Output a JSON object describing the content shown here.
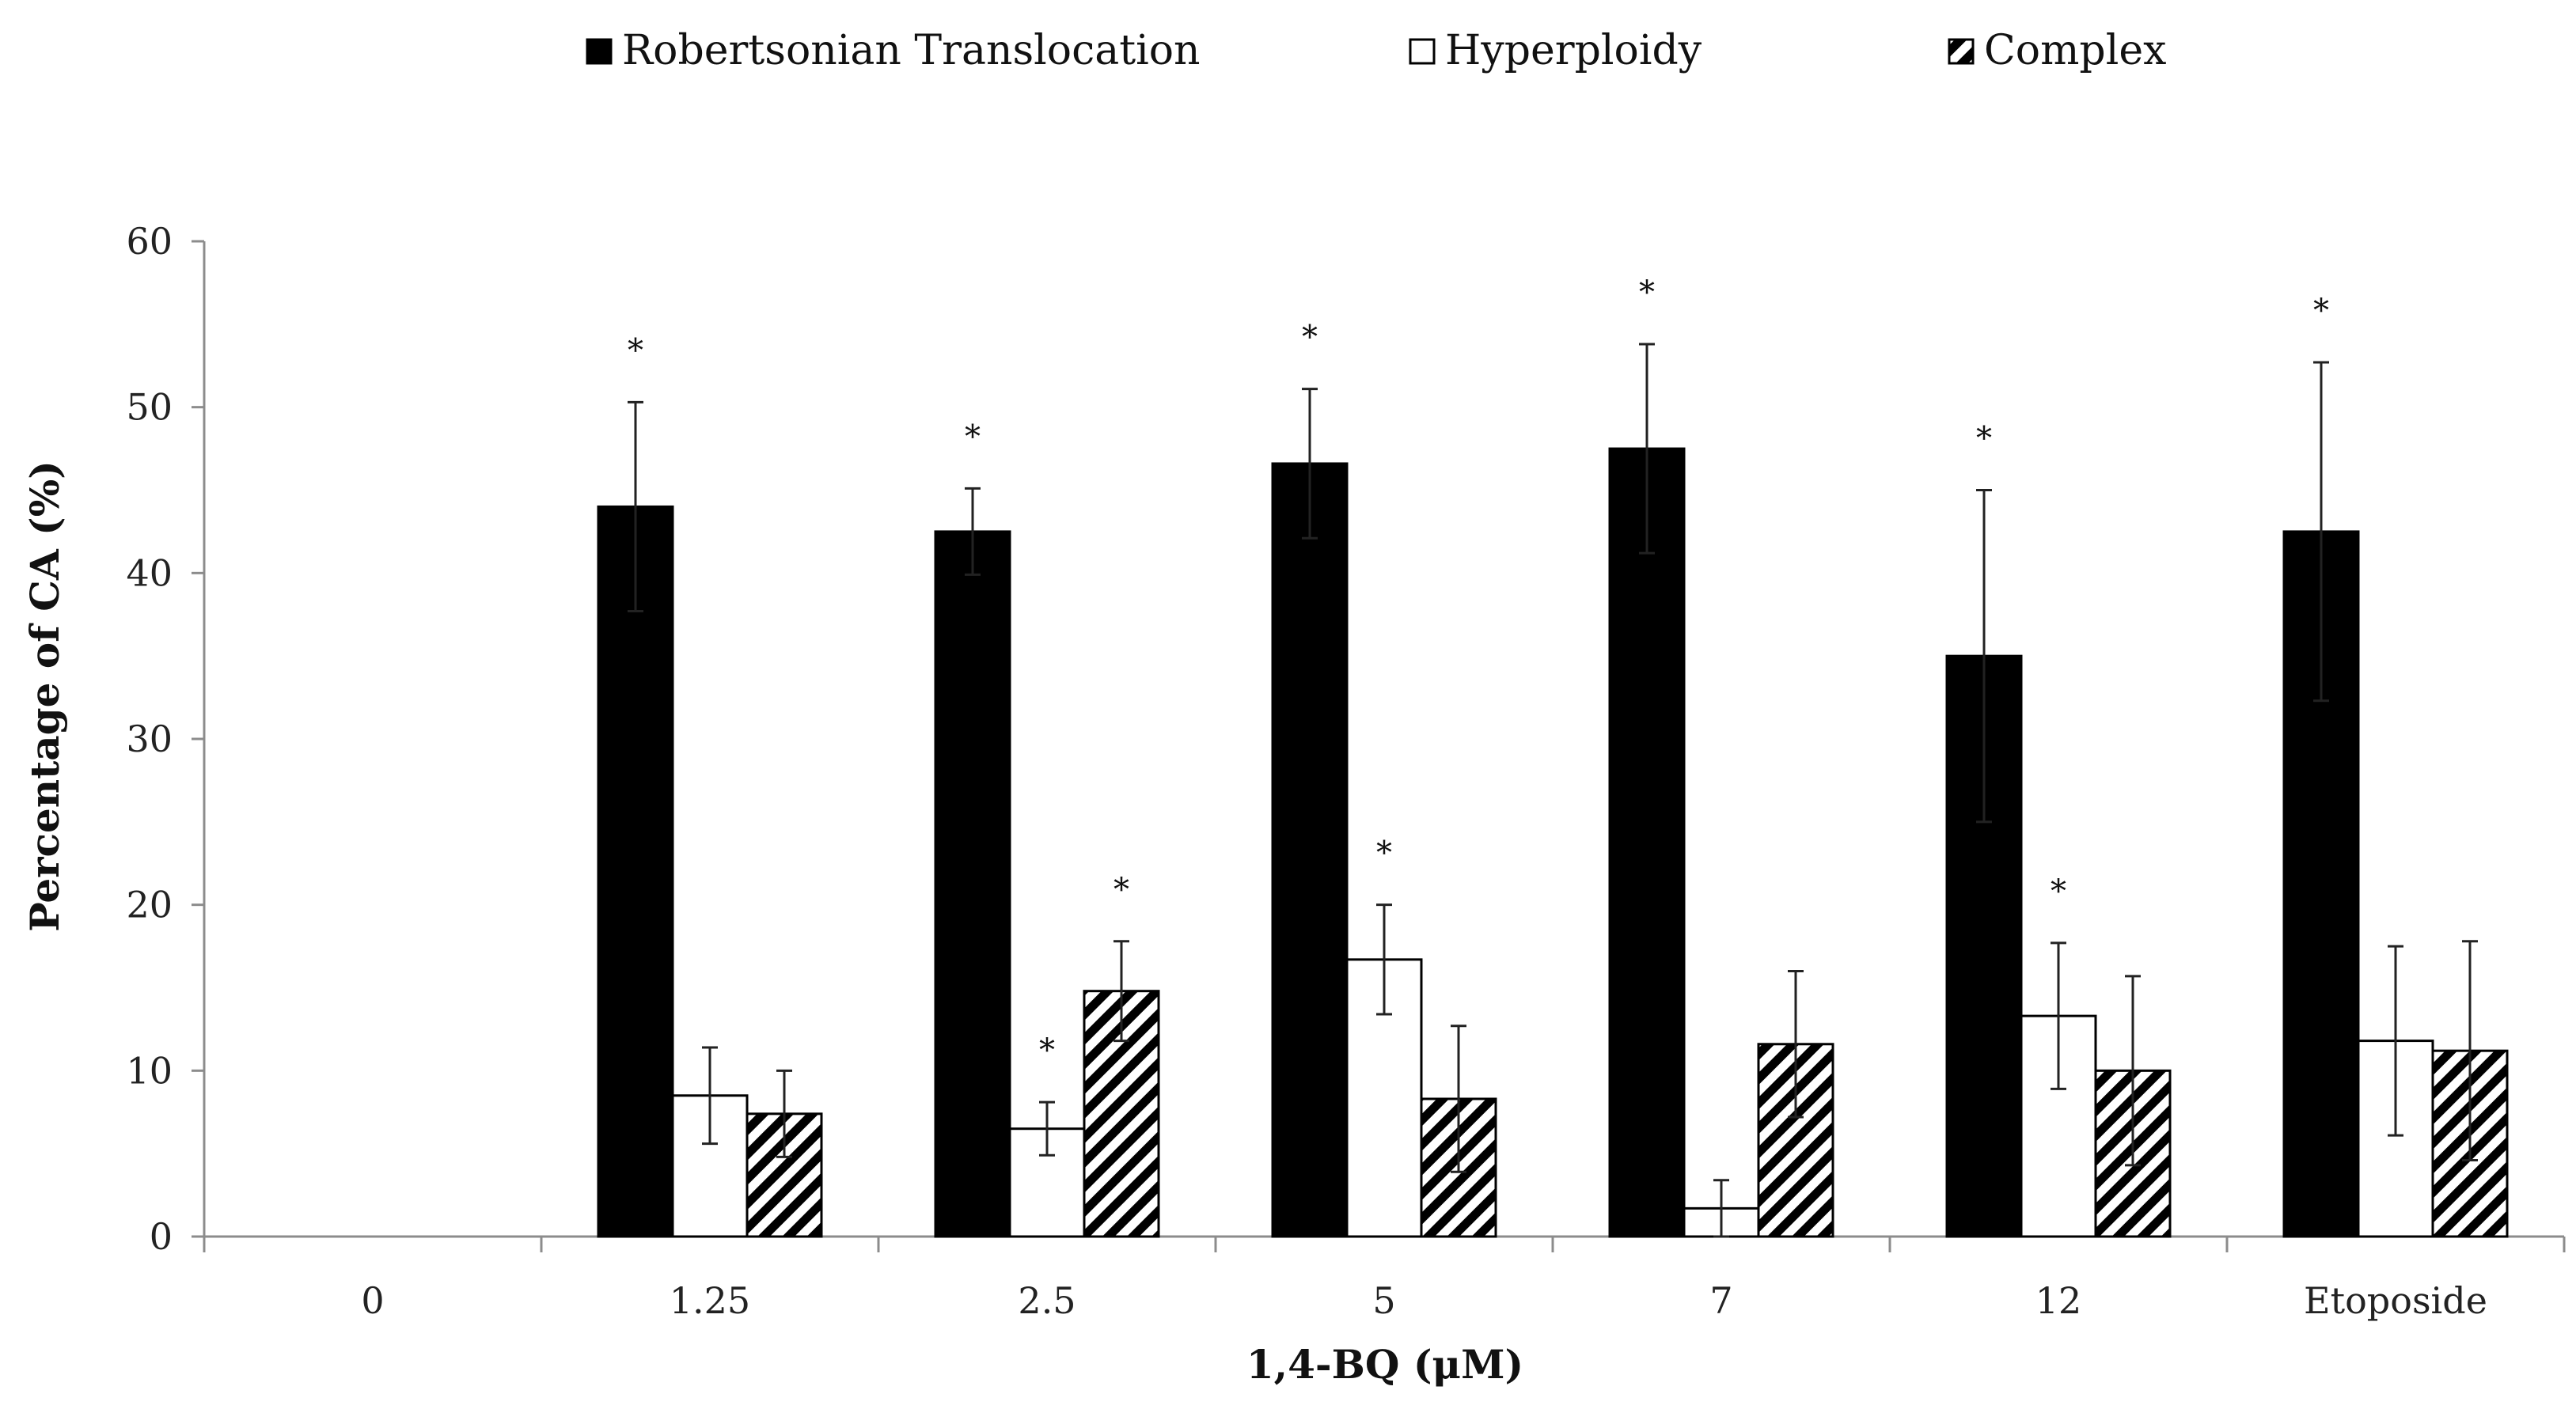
{
  "chart_data": {
    "type": "bar",
    "title": "",
    "xlabel": "1,4-BQ (μM)",
    "ylabel": "Percentage of CA (%)",
    "ylim": [
      0,
      60
    ],
    "yticks": [
      0,
      10,
      20,
      30,
      40,
      50,
      60
    ],
    "grid": false,
    "legend_position": "top",
    "categories": [
      "0",
      "1.25",
      "2.5",
      "5",
      "7",
      "12",
      "Etoposide"
    ],
    "series": [
      {
        "name": "Robertsonian Translocation",
        "fill": "solid",
        "color": "#000000",
        "values": [
          0,
          44,
          42.5,
          46.6,
          47.5,
          35,
          42.5
        ],
        "errors": [
          0,
          6.3,
          2.6,
          4.5,
          6.3,
          10,
          10.2
        ],
        "significant": [
          false,
          true,
          true,
          true,
          true,
          true,
          true
        ]
      },
      {
        "name": "Hyperploidy",
        "fill": "empty",
        "color": "#ffffff",
        "values": [
          0,
          8.5,
          6.5,
          16.7,
          1.7,
          13.3,
          11.8
        ],
        "errors": [
          0,
          2.9,
          1.6,
          3.3,
          1.7,
          4.4,
          5.7
        ],
        "significant": [
          false,
          false,
          true,
          true,
          false,
          true,
          false
        ]
      },
      {
        "name": "Complex",
        "fill": "hatched",
        "color": "#000000",
        "values": [
          0,
          7.4,
          14.8,
          8.3,
          11.6,
          10,
          11.2
        ],
        "errors": [
          0,
          2.6,
          3,
          4.4,
          4.4,
          5.7,
          6.6
        ],
        "significant": [
          false,
          false,
          true,
          false,
          false,
          false,
          false
        ]
      }
    ],
    "significance_marker": "*"
  }
}
